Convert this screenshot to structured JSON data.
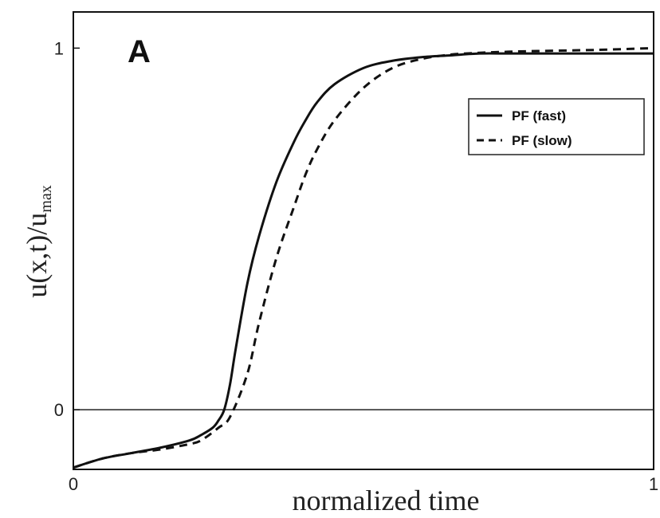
{
  "chart_data": {
    "type": "line",
    "panel_label": "A",
    "xlabel": "normalized time",
    "ylabel_main": "u(x,t)/u",
    "ylabel_subscript": "max",
    "xlim": [
      0,
      1
    ],
    "ylim": [
      -0.165,
      1.1
    ],
    "x_ticks": [
      {
        "value": 0,
        "label": "0"
      },
      {
        "value": 1,
        "label": "1"
      }
    ],
    "y_ticks": [
      {
        "value": 0,
        "label": "0"
      },
      {
        "value": 1,
        "label": "1"
      }
    ],
    "reference_line_y": 0,
    "grid": false,
    "legend_position": "upper right",
    "series": [
      {
        "name": "PF (fast)",
        "style": "solid",
        "color": "#111111",
        "x": [
          0,
          0.05,
          0.1,
          0.15,
          0.2,
          0.22,
          0.24,
          0.25,
          0.26,
          0.27,
          0.28,
          0.3,
          0.32,
          0.35,
          0.38,
          0.4,
          0.42,
          0.45,
          0.5,
          0.55,
          0.6,
          0.65,
          0.7,
          0.75,
          0.8,
          0.9,
          1.0
        ],
        "y": [
          -0.16,
          -0.135,
          -0.12,
          -0.105,
          -0.085,
          -0.07,
          -0.05,
          -0.03,
          0.0,
          0.07,
          0.17,
          0.35,
          0.48,
          0.63,
          0.74,
          0.8,
          0.85,
          0.9,
          0.945,
          0.965,
          0.975,
          0.98,
          0.985,
          0.985,
          0.985,
          0.985,
          0.985
        ]
      },
      {
        "name": "PF (slow)",
        "style": "dashed",
        "color": "#111111",
        "x": [
          0,
          0.05,
          0.1,
          0.15,
          0.2,
          0.22,
          0.25,
          0.27,
          0.3,
          0.32,
          0.35,
          0.38,
          0.4,
          0.42,
          0.45,
          0.5,
          0.55,
          0.6,
          0.65,
          0.7,
          0.75,
          0.8,
          0.9,
          1.0
        ],
        "y": [
          -0.16,
          -0.135,
          -0.12,
          -0.11,
          -0.095,
          -0.085,
          -0.05,
          -0.02,
          0.1,
          0.24,
          0.42,
          0.56,
          0.65,
          0.72,
          0.8,
          0.89,
          0.945,
          0.97,
          0.982,
          0.987,
          0.99,
          0.992,
          0.995,
          1.0
        ]
      }
    ]
  }
}
